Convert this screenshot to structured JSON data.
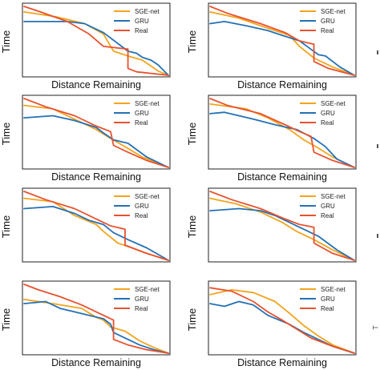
{
  "figure": {
    "edge_glyph": "T"
  },
  "chart_data": [
    {
      "type": "line",
      "xlabel": "Distance Remaining",
      "ylabel": "Time",
      "legend_position": "top-right",
      "series": [
        {
          "name": "SGE-net",
          "color": "#f2a41d",
          "x": [
            0,
            0.22,
            0.42,
            0.55,
            0.62,
            0.72,
            0.82,
            0.93,
            1.0
          ],
          "y": [
            0.92,
            0.85,
            0.75,
            0.6,
            0.35,
            0.28,
            0.22,
            0.06,
            0.0
          ]
        },
        {
          "name": "GRU",
          "color": "#2471b5",
          "x": [
            0,
            0.3,
            0.42,
            0.5,
            0.55,
            0.72,
            0.78,
            0.82,
            0.88,
            0.93,
            1.0
          ],
          "y": [
            0.78,
            0.78,
            0.75,
            0.67,
            0.62,
            0.35,
            0.32,
            0.26,
            0.22,
            0.15,
            0.0
          ]
        },
        {
          "name": "Real",
          "color": "#e8522f",
          "x": [
            0,
            0.1,
            0.3,
            0.45,
            0.55,
            0.72,
            0.72,
            0.78,
            1.0
          ],
          "y": [
            1.0,
            0.93,
            0.78,
            0.6,
            0.42,
            0.38,
            0.1,
            0.05,
            0.0
          ]
        }
      ]
    },
    {
      "type": "line",
      "xlabel": "Distance Remaining",
      "ylabel": "Time",
      "legend_position": "top-right",
      "series": [
        {
          "name": "SGE-net",
          "color": "#f2a41d",
          "x": [
            0,
            0.2,
            0.35,
            0.55,
            0.62,
            0.72,
            0.85,
            1.0
          ],
          "y": [
            0.92,
            0.83,
            0.72,
            0.58,
            0.42,
            0.25,
            0.12,
            0.0
          ]
        },
        {
          "name": "GRU",
          "color": "#2471b5",
          "x": [
            0,
            0.1,
            0.25,
            0.4,
            0.5,
            0.62,
            0.75,
            0.8,
            0.9,
            1.0
          ],
          "y": [
            0.75,
            0.78,
            0.72,
            0.65,
            0.58,
            0.5,
            0.3,
            0.28,
            0.12,
            0.0
          ]
        },
        {
          "name": "Real",
          "color": "#e8522f",
          "x": [
            0,
            0.12,
            0.35,
            0.52,
            0.62,
            0.72,
            0.72,
            0.82,
            1.0
          ],
          "y": [
            1.0,
            0.9,
            0.75,
            0.62,
            0.5,
            0.45,
            0.2,
            0.1,
            0.0
          ]
        }
      ]
    },
    {
      "type": "line",
      "xlabel": "Distance Remaining",
      "ylabel": "Time",
      "legend_position": "top-right",
      "series": [
        {
          "name": "SGE-net",
          "color": "#f2a41d",
          "x": [
            0,
            0.2,
            0.35,
            0.5,
            0.6,
            0.7,
            0.82,
            1.0
          ],
          "y": [
            0.9,
            0.85,
            0.7,
            0.55,
            0.42,
            0.3,
            0.15,
            0.0
          ]
        },
        {
          "name": "GRU",
          "color": "#2471b5",
          "x": [
            0,
            0.2,
            0.35,
            0.5,
            0.55,
            0.62,
            0.72,
            0.85,
            1.0
          ],
          "y": [
            0.72,
            0.75,
            0.68,
            0.58,
            0.5,
            0.4,
            0.35,
            0.15,
            0.0
          ]
        },
        {
          "name": "Real",
          "color": "#e8522f",
          "x": [
            0,
            0.15,
            0.35,
            0.5,
            0.6,
            0.62,
            0.72,
            0.85,
            1.0
          ],
          "y": [
            1.0,
            0.88,
            0.75,
            0.6,
            0.52,
            0.32,
            0.22,
            0.1,
            0.0
          ]
        }
      ]
    },
    {
      "type": "line",
      "xlabel": "Distance Remaining",
      "ylabel": "Time",
      "legend_position": "top-right",
      "series": [
        {
          "name": "SGE-net",
          "color": "#f2a41d",
          "x": [
            0,
            0.25,
            0.4,
            0.55,
            0.65,
            0.75,
            0.85,
            1.0
          ],
          "y": [
            0.92,
            0.85,
            0.72,
            0.55,
            0.4,
            0.28,
            0.15,
            0.0
          ]
        },
        {
          "name": "GRU",
          "color": "#2471b5",
          "x": [
            0,
            0.1,
            0.3,
            0.45,
            0.6,
            0.72,
            0.8,
            0.88,
            1.0
          ],
          "y": [
            0.78,
            0.8,
            0.7,
            0.62,
            0.55,
            0.42,
            0.3,
            0.12,
            0.0
          ]
        },
        {
          "name": "Real",
          "color": "#e8522f",
          "x": [
            0,
            0.12,
            0.35,
            0.52,
            0.62,
            0.7,
            0.72,
            0.85,
            1.0
          ],
          "y": [
            1.0,
            0.9,
            0.78,
            0.62,
            0.52,
            0.45,
            0.22,
            0.1,
            0.0
          ]
        }
      ]
    },
    {
      "type": "line",
      "xlabel": "",
      "ylabel": "Time",
      "legend_position": "top-right",
      "series": [
        {
          "name": "SGE-net",
          "color": "#f2a41d",
          "x": [
            0,
            0.2,
            0.35,
            0.5,
            0.55,
            0.65,
            0.72,
            0.85,
            1.0
          ],
          "y": [
            0.9,
            0.85,
            0.65,
            0.52,
            0.42,
            0.25,
            0.2,
            0.1,
            0.0
          ]
        },
        {
          "name": "GRU",
          "color": "#2471b5",
          "x": [
            0,
            0.2,
            0.35,
            0.45,
            0.55,
            0.62,
            0.72,
            0.85,
            1.0
          ],
          "y": [
            0.75,
            0.78,
            0.68,
            0.58,
            0.52,
            0.4,
            0.3,
            0.18,
            0.0
          ]
        },
        {
          "name": "Real",
          "color": "#e8522f",
          "x": [
            0,
            0.15,
            0.35,
            0.5,
            0.6,
            0.7,
            0.7,
            0.85,
            1.0
          ],
          "y": [
            1.0,
            0.88,
            0.75,
            0.6,
            0.5,
            0.45,
            0.22,
            0.1,
            0.0
          ]
        }
      ]
    },
    {
      "type": "line",
      "xlabel": "",
      "ylabel": "Time",
      "legend_position": "top-right",
      "series": [
        {
          "name": "SGE-net",
          "color": "#f2a41d",
          "x": [
            0,
            0.18,
            0.35,
            0.5,
            0.6,
            0.72,
            0.85,
            1.0
          ],
          "y": [
            0.9,
            0.82,
            0.7,
            0.55,
            0.42,
            0.3,
            0.15,
            0.0
          ]
        },
        {
          "name": "GRU",
          "color": "#2471b5",
          "x": [
            0,
            0.2,
            0.35,
            0.45,
            0.55,
            0.65,
            0.75,
            0.88,
            1.0
          ],
          "y": [
            0.72,
            0.75,
            0.72,
            0.65,
            0.55,
            0.45,
            0.35,
            0.15,
            0.0
          ]
        },
        {
          "name": "Real",
          "color": "#e8522f",
          "x": [
            0,
            0.15,
            0.35,
            0.52,
            0.62,
            0.72,
            0.72,
            0.85,
            1.0
          ],
          "y": [
            1.0,
            0.88,
            0.75,
            0.6,
            0.52,
            0.48,
            0.25,
            0.1,
            0.0
          ]
        }
      ]
    },
    {
      "type": "line",
      "xlabel": "Distance Remaining",
      "ylabel": "Time",
      "legend_position": "top-right",
      "series": [
        {
          "name": "SGE-net",
          "color": "#f2a41d",
          "x": [
            0,
            0.2,
            0.4,
            0.5,
            0.55,
            0.6,
            0.7,
            0.8,
            0.9,
            1.0
          ],
          "y": [
            0.78,
            0.72,
            0.65,
            0.52,
            0.48,
            0.38,
            0.32,
            0.18,
            0.08,
            0.0
          ]
        },
        {
          "name": "GRU",
          "color": "#2471b5",
          "x": [
            0,
            0.15,
            0.25,
            0.35,
            0.45,
            0.55,
            0.6,
            0.62,
            0.7,
            0.8,
            0.9,
            1.0
          ],
          "y": [
            0.72,
            0.75,
            0.65,
            0.6,
            0.55,
            0.5,
            0.42,
            0.3,
            0.22,
            0.12,
            0.05,
            0.0
          ]
        },
        {
          "name": "Real",
          "color": "#e8522f",
          "x": [
            0,
            0.1,
            0.25,
            0.4,
            0.5,
            0.62,
            0.62,
            0.72,
            0.85,
            1.0
          ],
          "y": [
            1.0,
            0.92,
            0.82,
            0.7,
            0.6,
            0.48,
            0.2,
            0.12,
            0.05,
            0.0
          ]
        }
      ]
    },
    {
      "type": "line",
      "xlabel": "Distance Remaining",
      "ylabel": "Time",
      "legend_position": "top-right",
      "series": [
        {
          "name": "SGE-net",
          "color": "#f2a41d",
          "x": [
            0,
            0.15,
            0.3,
            0.45,
            0.55,
            0.65,
            0.75,
            0.85,
            1.0
          ],
          "y": [
            0.85,
            0.92,
            0.88,
            0.75,
            0.58,
            0.4,
            0.25,
            0.12,
            0.0
          ]
        },
        {
          "name": "GRU",
          "color": "#2471b5",
          "x": [
            0,
            0.1,
            0.2,
            0.3,
            0.4,
            0.55,
            0.65,
            0.75,
            0.85,
            1.0
          ],
          "y": [
            0.72,
            0.68,
            0.75,
            0.7,
            0.55,
            0.42,
            0.3,
            0.2,
            0.1,
            0.0
          ]
        },
        {
          "name": "Real",
          "color": "#e8522f",
          "x": [
            0,
            0.15,
            0.3,
            0.4,
            0.5,
            0.6,
            0.7,
            0.85,
            1.0
          ],
          "y": [
            0.95,
            0.9,
            0.75,
            0.6,
            0.48,
            0.35,
            0.22,
            0.1,
            0.0
          ]
        }
      ]
    }
  ]
}
